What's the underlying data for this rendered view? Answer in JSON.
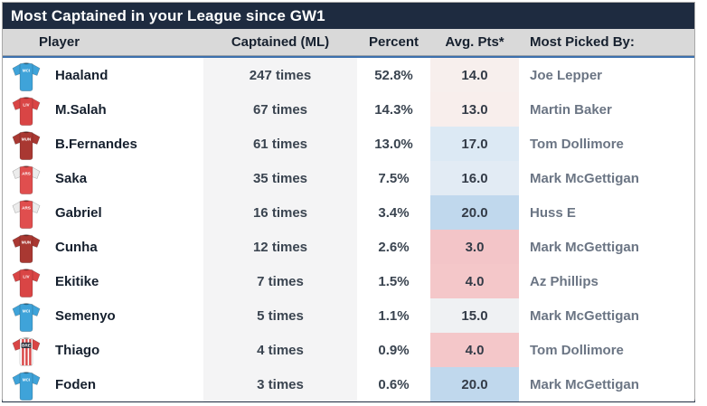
{
  "title": "Most Captained in your League since GW1",
  "columns": {
    "player": "Player",
    "captained": "Captained (ML)",
    "percent": "Percent",
    "avg_pts": "Avg. Pts*",
    "most_picked": "Most Picked By:"
  },
  "colors": {
    "title_bar": "#1e2b40",
    "header_bg": "#d9d9d9",
    "header_text": "#16202e",
    "accent_line": "#3c70ad",
    "captained_column_bg": "#f4f4f5",
    "picked_by_text": "#6b7584",
    "avg_pts_high": "#c0d8ed",
    "avg_pts_low": "#f3c5c8"
  },
  "chart_data": {
    "type": "table",
    "title": "Most Captained in your League since GW1",
    "columns": [
      "Player",
      "Captained (ML)",
      "Percent",
      "Avg. Pts*",
      "Most Picked By:"
    ],
    "rows": [
      [
        "Haaland",
        "247 times",
        "52.8%",
        "14.0",
        "Joe Lepper"
      ],
      [
        "M.Salah",
        "67 times",
        "14.3%",
        "13.0",
        "Martin Baker"
      ],
      [
        "B.Fernandes",
        "61 times",
        "13.0%",
        "17.0",
        "Tom Dollimore"
      ],
      [
        "Saka",
        "35 times",
        "7.5%",
        "16.0",
        "Mark McGettigan"
      ],
      [
        "Gabriel",
        "16 times",
        "3.4%",
        "20.0",
        "Huss E"
      ],
      [
        "Cunha",
        "12 times",
        "2.6%",
        "3.0",
        "Mark McGettigan"
      ],
      [
        "Ekitike",
        "7 times",
        "1.5%",
        "4.0",
        "Az Phillips"
      ],
      [
        "Semenyo",
        "5 times",
        "1.1%",
        "15.0",
        "Mark McGettigan"
      ],
      [
        "Thiago",
        "4 times",
        "0.9%",
        "4.0",
        "Tom Dollimore"
      ],
      [
        "Foden",
        "3 times",
        "0.6%",
        "20.0",
        "Mark McGettigan"
      ]
    ],
    "layout_hint": "Avg. Pts column is heatmap colored: blue for high values, pink/red for low, neutral near 15"
  },
  "rows": [
    {
      "player": "Haaland",
      "captained": "247 times",
      "percent": "52.8%",
      "avg_pts": "14.0",
      "avg_pts_bg": "#f7efed",
      "most_picked_by": "Joe Lepper",
      "jersey": {
        "code": "MCI",
        "body": "#3fa3d9",
        "sleeve": "#3fa3d9",
        "striped": false,
        "stripe": ""
      }
    },
    {
      "player": "M.Salah",
      "captained": "67 times",
      "percent": "14.3%",
      "avg_pts": "13.0",
      "avg_pts_bg": "#f8eeec",
      "most_picked_by": "Martin Baker",
      "jersey": {
        "code": "LIV",
        "body": "#d94545",
        "sleeve": "#d94545",
        "striped": false,
        "stripe": ""
      }
    },
    {
      "player": "B.Fernandes",
      "captained": "61 times",
      "percent": "13.0%",
      "avg_pts": "17.0",
      "avg_pts_bg": "#dce9f4",
      "most_picked_by": "Tom Dollimore",
      "jersey": {
        "code": "MUN",
        "body": "#a93832",
        "sleeve": "#a93832",
        "striped": false,
        "stripe": ""
      }
    },
    {
      "player": "Saka",
      "captained": "35 times",
      "percent": "7.5%",
      "avg_pts": "16.0",
      "avg_pts_bg": "#e2ebf4",
      "most_picked_by": "Mark McGettigan",
      "jersey": {
        "code": "ARS",
        "body": "#e04e4e",
        "sleeve": "#ececec",
        "striped": false,
        "stripe": ""
      }
    },
    {
      "player": "Gabriel",
      "captained": "16 times",
      "percent": "3.4%",
      "avg_pts": "20.0",
      "avg_pts_bg": "#c0d8ed",
      "most_picked_by": "Huss E",
      "jersey": {
        "code": "ARS",
        "body": "#e04e4e",
        "sleeve": "#ececec",
        "striped": false,
        "stripe": ""
      }
    },
    {
      "player": "Cunha",
      "captained": "12 times",
      "percent": "2.6%",
      "avg_pts": "3.0",
      "avg_pts_bg": "#f3c5c8",
      "most_picked_by": "Mark McGettigan",
      "jersey": {
        "code": "MUN",
        "body": "#a93832",
        "sleeve": "#a93832",
        "striped": false,
        "stripe": ""
      }
    },
    {
      "player": "Ekitike",
      "captained": "7 times",
      "percent": "1.5%",
      "avg_pts": "4.0",
      "avg_pts_bg": "#f4c7c9",
      "most_picked_by": "Az Phillips",
      "jersey": {
        "code": "LIV",
        "body": "#d94545",
        "sleeve": "#d94545",
        "striped": false,
        "stripe": ""
      }
    },
    {
      "player": "Semenyo",
      "captained": "5 times",
      "percent": "1.1%",
      "avg_pts": "15.0",
      "avg_pts_bg": "#eff1f3",
      "most_picked_by": "Mark McGettigan",
      "jersey": {
        "code": "MCI",
        "body": "#3fa3d9",
        "sleeve": "#3fa3d9",
        "striped": false,
        "stripe": ""
      }
    },
    {
      "player": "Thiago",
      "captained": "4 times",
      "percent": "0.9%",
      "avg_pts": "4.0",
      "avg_pts_bg": "#f4c7c9",
      "most_picked_by": "Tom Dollimore",
      "jersey": {
        "code": "BRE",
        "body": "#ffffff",
        "sleeve": "#d94545",
        "striped": true,
        "stripe": "#d94545"
      }
    },
    {
      "player": "Foden",
      "captained": "3 times",
      "percent": "0.6%",
      "avg_pts": "20.0",
      "avg_pts_bg": "#c0d8ed",
      "most_picked_by": "Mark McGettigan",
      "jersey": {
        "code": "MCI",
        "body": "#3fa3d9",
        "sleeve": "#3fa3d9",
        "striped": false,
        "stripe": ""
      }
    }
  ]
}
